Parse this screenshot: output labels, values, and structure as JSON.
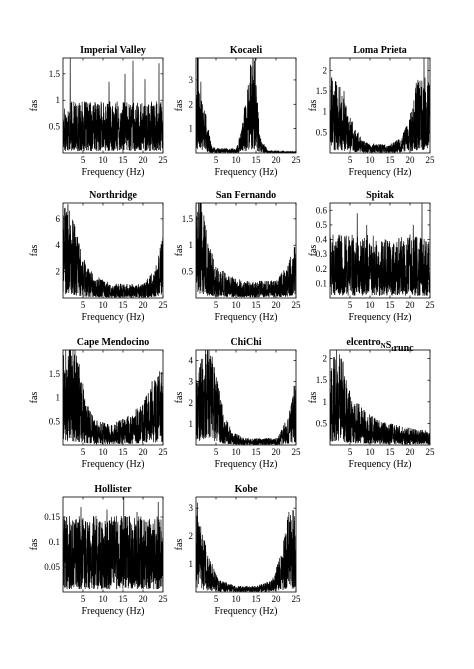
{
  "chart_data": [
    {
      "type": "line",
      "title": "Imperial Valley",
      "xlabel": "Frequency (Hz)",
      "ylabel": "fas",
      "xlim": [
        0,
        25
      ],
      "ylim": [
        0,
        1.8
      ],
      "xticks": [
        5,
        10,
        15,
        20,
        25
      ],
      "yticks": [
        0.5,
        1,
        1.5
      ],
      "xtick_labels": [
        "5",
        "10",
        "15",
        "20",
        "25"
      ],
      "ytick_labels": [
        "0.5",
        "1",
        "1.5"
      ],
      "profile": {
        "f": [
          0,
          5,
          10,
          15,
          20,
          25
        ],
        "level": [
          0.45,
          0.45,
          0.45,
          0.45,
          0.45,
          0.45
        ]
      },
      "peaks": [
        [
          1.8,
          1.8
        ],
        [
          11.5,
          1.35
        ],
        [
          15.5,
          1.5
        ],
        [
          17.5,
          1.75
        ],
        [
          20.5,
          1.4
        ],
        [
          24.0,
          1.7
        ]
      ]
    },
    {
      "type": "line",
      "title": "Kocaeli",
      "xlabel": "Frequency (Hz)",
      "ylabel": "fas",
      "xlim": [
        0,
        25
      ],
      "ylim": [
        0,
        3.9
      ],
      "xticks": [
        5,
        10,
        15,
        20,
        25
      ],
      "yticks": [
        1,
        2,
        3
      ],
      "xtick_labels": [
        "5",
        "10",
        "15",
        "20",
        "25"
      ],
      "ytick_labels": [
        "1",
        "2",
        "3"
      ],
      "profile": {
        "f": [
          0,
          0.5,
          1.5,
          3,
          4,
          10,
          11.5,
          13,
          14.5,
          16,
          18,
          25
        ],
        "level": [
          1.7,
          2.0,
          1.4,
          0.5,
          0.1,
          0.08,
          0.5,
          1.5,
          1.9,
          0.3,
          0.05,
          0.03
        ]
      },
      "peaks": [
        [
          14.8,
          3.9
        ],
        [
          0.5,
          2.6
        ]
      ]
    },
    {
      "type": "line",
      "title": "Loma Prieta",
      "xlabel": "Frequency (Hz)",
      "ylabel": "fas",
      "xlim": [
        0,
        25
      ],
      "ylim": [
        0,
        2.3
      ],
      "xticks": [
        5,
        10,
        15,
        20,
        25
      ],
      "yticks": [
        0.5,
        1,
        1.5,
        2
      ],
      "xtick_labels": [
        "5",
        "10",
        "15",
        "20",
        "25"
      ],
      "ytick_labels": [
        "0.5",
        "1",
        "1.5",
        "2"
      ],
      "profile": {
        "f": [
          0,
          2,
          5,
          8,
          10,
          15,
          18,
          20,
          22,
          25
        ],
        "level": [
          0.9,
          0.8,
          0.4,
          0.15,
          0.1,
          0.1,
          0.18,
          0.45,
          0.9,
          0.8
        ]
      },
      "peaks": [
        [
          2.5,
          1.6
        ],
        [
          3.5,
          1.5
        ],
        [
          23.5,
          2.3
        ],
        [
          24.5,
          2.3
        ],
        [
          22.8,
          1.6
        ]
      ]
    },
    {
      "type": "line",
      "title": "Northridge",
      "xlabel": "Frequency (Hz)",
      "ylabel": "fas",
      "xlim": [
        0,
        25
      ],
      "ylim": [
        0,
        7.2
      ],
      "xticks": [
        5,
        10,
        15,
        20,
        25
      ],
      "yticks": [
        2,
        4,
        6
      ],
      "xtick_labels": [
        "5",
        "10",
        "15",
        "20",
        "25"
      ],
      "ytick_labels": [
        "2",
        "4",
        "6"
      ],
      "profile": {
        "f": [
          0,
          1,
          3,
          5,
          8,
          12,
          20,
          23,
          25
        ],
        "level": [
          3.0,
          3.5,
          2.5,
          1.4,
          0.8,
          0.5,
          0.5,
          1.0,
          2.2
        ]
      },
      "peaks": [
        [
          0.4,
          6.8
        ],
        [
          1.0,
          6.3
        ],
        [
          24.8,
          3.0
        ]
      ]
    },
    {
      "type": "line",
      "title": "San Fernando",
      "xlabel": "Frequency (Hz)",
      "ylabel": "fas",
      "xlim": [
        0,
        25
      ],
      "ylim": [
        0,
        1.8
      ],
      "xticks": [
        5,
        10,
        15,
        20,
        25
      ],
      "yticks": [
        0.5,
        1,
        1.5
      ],
      "xtick_labels": [
        "5",
        "10",
        "15",
        "20",
        "25"
      ],
      "ytick_labels": [
        "0.5",
        "1",
        "1.5"
      ],
      "profile": {
        "f": [
          0,
          1,
          3,
          5,
          8,
          12,
          20,
          23,
          25
        ],
        "level": [
          0.9,
          1.0,
          0.5,
          0.3,
          0.2,
          0.15,
          0.15,
          0.3,
          0.5
        ]
      },
      "peaks": [
        [
          1.1,
          1.8
        ],
        [
          0.7,
          1.6
        ],
        [
          24.8,
          0.75
        ]
      ]
    },
    {
      "type": "line",
      "title": "Spitak",
      "xlabel": "Frequency (Hz)",
      "ylabel": "fas",
      "xlim": [
        0,
        25
      ],
      "ylim": [
        0,
        0.65
      ],
      "xticks": [
        5,
        10,
        15,
        20,
        25
      ],
      "yticks": [
        0.1,
        0.2,
        0.3,
        0.4,
        0.5,
        0.6
      ],
      "xtick_labels": [
        "5",
        "10",
        "15",
        "20",
        "25"
      ],
      "ytick_labels": [
        "0.1",
        "0.2",
        "0.3",
        "0.4",
        "0.5",
        "0.6"
      ],
      "profile": {
        "f": [
          0,
          5,
          10,
          15,
          20,
          25
        ],
        "level": [
          0.2,
          0.2,
          0.2,
          0.18,
          0.2,
          0.18
        ]
      },
      "peaks": [
        [
          6.8,
          0.58
        ],
        [
          23.0,
          0.65
        ],
        [
          9.2,
          0.5
        ],
        [
          20.8,
          0.5
        ]
      ]
    },
    {
      "type": "line",
      "title": "Cape Mendocino",
      "xlabel": "Frequency (Hz)",
      "ylabel": "fas",
      "xlim": [
        0,
        25
      ],
      "ylim": [
        0,
        2.0
      ],
      "xticks": [
        5,
        10,
        15,
        20,
        25
      ],
      "yticks": [
        0.5,
        1,
        1.5
      ],
      "xtick_labels": [
        "5",
        "10",
        "15",
        "20",
        "25"
      ],
      "ytick_labels": [
        "0.5",
        "1",
        "1.5"
      ],
      "profile": {
        "f": [
          0,
          2,
          4,
          6,
          8,
          12,
          16,
          20,
          22,
          25
        ],
        "level": [
          0.9,
          1.0,
          0.8,
          0.4,
          0.25,
          0.2,
          0.28,
          0.4,
          0.6,
          0.8
        ]
      },
      "peaks": [
        [
          3.0,
          2.0
        ],
        [
          3.8,
          1.65
        ],
        [
          22.8,
          1.2
        ]
      ]
    },
    {
      "type": "line",
      "title": "ChiChi",
      "xlabel": "Frequency (Hz)",
      "ylabel": "fas",
      "xlim": [
        0,
        25
      ],
      "ylim": [
        0,
        4.5
      ],
      "xticks": [
        5,
        10,
        15,
        20,
        25
      ],
      "yticks": [
        1,
        2,
        3,
        4
      ],
      "xtick_labels": [
        "5",
        "10",
        "15",
        "20",
        "25"
      ],
      "ytick_labels": [
        "1",
        "2",
        "3",
        "4"
      ],
      "profile": {
        "f": [
          0,
          1,
          3,
          5,
          7,
          9,
          12,
          20,
          23,
          25
        ],
        "level": [
          1.5,
          1.8,
          2.3,
          1.6,
          0.7,
          0.3,
          0.15,
          0.15,
          0.6,
          1.4
        ]
      },
      "peaks": [
        [
          2.5,
          4.3
        ],
        [
          3.2,
          3.9
        ],
        [
          4.2,
          3.5
        ],
        [
          24.5,
          2.8
        ]
      ]
    },
    {
      "type": "line",
      "title": "elcentroNStrunc",
      "title_main": "elcentro",
      "title_sub1": "N",
      "title_mid": "S",
      "title_sub2": "t",
      "title_tail": "runc",
      "xlabel": "Frequency (Hz)",
      "ylabel": "fas",
      "xlim": [
        0,
        25
      ],
      "ylim": [
        0,
        2.2
      ],
      "xticks": [
        5,
        10,
        15,
        20,
        25
      ],
      "yticks": [
        0.5,
        1,
        1.5,
        2
      ],
      "xtick_labels": [
        "5",
        "10",
        "15",
        "20",
        "25"
      ],
      "ytick_labels": [
        "0.5",
        "1",
        "1.5",
        "2"
      ],
      "profile": {
        "f": [
          0,
          1,
          2.5,
          4,
          6,
          9,
          13,
          18,
          25
        ],
        "level": [
          0.8,
          1.0,
          1.1,
          0.7,
          0.5,
          0.35,
          0.25,
          0.2,
          0.15
        ]
      },
      "peaks": [
        [
          2.4,
          2.1
        ],
        [
          2.9,
          2.0
        ],
        [
          1.8,
          1.7
        ]
      ]
    },
    {
      "type": "line",
      "title": "Hollister",
      "xlabel": "Frequency (Hz)",
      "ylabel": "fas",
      "xlim": [
        0,
        25
      ],
      "ylim": [
        0,
        0.19
      ],
      "xticks": [
        5,
        10,
        15,
        20,
        25
      ],
      "yticks": [
        0.05,
        0.1,
        0.15
      ],
      "xtick_labels": [
        "5",
        "10",
        "15",
        "20",
        "25"
      ],
      "ytick_labels": [
        "0.05",
        "0.1",
        "0.15"
      ],
      "profile": {
        "f": [
          0,
          5,
          10,
          15,
          20,
          25
        ],
        "level": [
          0.07,
          0.07,
          0.07,
          0.07,
          0.07,
          0.07
        ]
      },
      "peaks": [
        [
          15.2,
          0.19
        ],
        [
          4.5,
          0.17
        ],
        [
          23.8,
          0.18
        ],
        [
          11.0,
          0.165
        ],
        [
          18.5,
          0.16
        ]
      ]
    },
    {
      "type": "line",
      "title": "Kobe",
      "xlabel": "Frequency (Hz)",
      "ylabel": "fas",
      "xlim": [
        0,
        25
      ],
      "ylim": [
        0,
        3.4
      ],
      "xticks": [
        5,
        10,
        15,
        20,
        25
      ],
      "yticks": [
        1,
        2,
        3
      ],
      "xtick_labels": [
        "5",
        "10",
        "15",
        "20",
        "25"
      ],
      "ytick_labels": [
        "1",
        "2",
        "3"
      ],
      "profile": {
        "f": [
          0,
          1,
          3,
          6,
          10,
          15,
          19,
          21,
          23,
          25
        ],
        "level": [
          1.5,
          1.2,
          0.6,
          0.2,
          0.1,
          0.1,
          0.2,
          0.6,
          1.3,
          1.5
        ]
      },
      "peaks": [
        [
          0.4,
          3.2
        ],
        [
          24.3,
          2.8
        ],
        [
          23.6,
          2.5
        ]
      ]
    }
  ]
}
